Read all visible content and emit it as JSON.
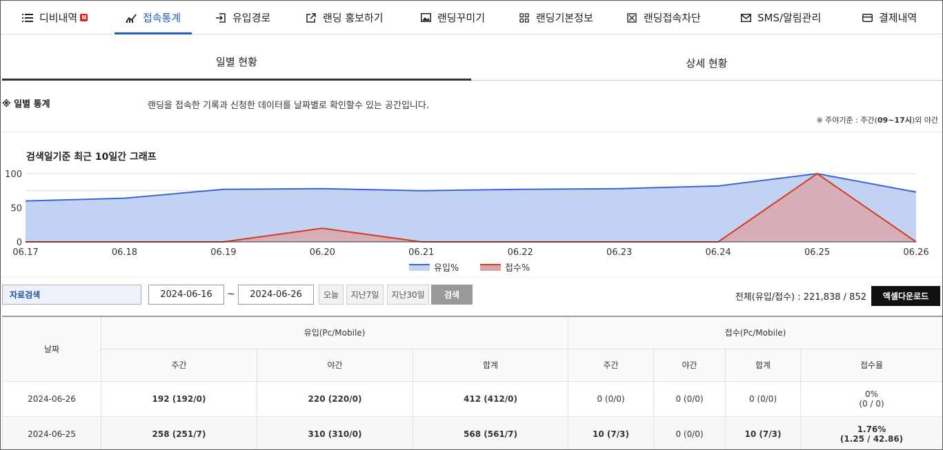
{
  "nav": {
    "items": [
      {
        "label": "디비내역",
        "icon": "list-icon",
        "badge": "N"
      },
      {
        "label": "접속통계",
        "icon": "chart-line-icon",
        "active": true
      },
      {
        "label": "유입경로",
        "icon": "enter-icon"
      },
      {
        "label": "랜딩 홍보하기",
        "icon": "external-link-icon"
      },
      {
        "label": "랜딩꾸미기",
        "icon": "image-icon"
      },
      {
        "label": "랜딩기본정보",
        "icon": "grid-icon"
      },
      {
        "label": "랜딩접속차단",
        "icon": "block-icon"
      },
      {
        "label": "SMS/알림관리",
        "icon": "mail-icon"
      },
      {
        "label": "결제내역",
        "icon": "card-icon"
      }
    ]
  },
  "subtabs": [
    {
      "label": "일별 현황",
      "active": true
    },
    {
      "label": "상세 현황"
    }
  ],
  "info": {
    "title": "※ 일별 통계",
    "description": "랜딩을 접속한 기록과 신청한 데이터를 날짜별로 확인할수 있는 공간입니다.",
    "note_prefix": "※ 주야기준 : 주간(",
    "note_hours": "09~17시",
    "note_suffix": ")외 야간"
  },
  "chart_data": {
    "type": "area",
    "title": "검색일기준 최근 10일간 그래프",
    "categories": [
      "06.17",
      "06.18",
      "06.19",
      "06.20",
      "06.21",
      "06.22",
      "06.23",
      "06.24",
      "06.25",
      "06.26"
    ],
    "series": [
      {
        "name": "유입%",
        "values": [
          60,
          64,
          77,
          78,
          75,
          77,
          78,
          82,
          100,
          73
        ],
        "color": "#3a64d8",
        "fill": "#c2d2f2"
      },
      {
        "name": "접수%",
        "values": [
          0,
          0,
          0,
          20,
          0,
          0,
          0,
          0,
          100,
          0
        ],
        "color": "#d63a1e",
        "fill": "#d9a5a8"
      }
    ],
    "yticks": [
      0,
      50,
      100
    ],
    "ylim": [
      0,
      100
    ],
    "grid": true,
    "legend": "bottom"
  },
  "search": {
    "label": "자료검색",
    "start_date": "2024-06-16",
    "tilde": "~",
    "end_date": "2024-06-26",
    "today": "오늘",
    "last7": "지난7일",
    "last30": "지난30일",
    "search": "검색",
    "totals": "전체(유입/접수) : 221,838 / 852",
    "excel": "엑셀다운로드"
  },
  "table": {
    "date_header": "날짜",
    "inflow_header": "유입(Pc/Mobile)",
    "receipt_header": "접수(Pc/Mobile)",
    "sub_headers": [
      "주간",
      "야간",
      "합계",
      "주간",
      "야간",
      "합계",
      "접수율"
    ],
    "rows": [
      {
        "date": "2024-06-26",
        "in_day": "192 (192/0)",
        "in_night": "220 (220/0)",
        "in_total": "412 (412/0)",
        "rc_day": "0 (0/0)",
        "rc_night": "0 (0/0)",
        "rc_total": "0 (0/0)",
        "rate": "0%",
        "rate_detail": "(0 / 0)",
        "bold_rc": false
      },
      {
        "date": "2024-06-25",
        "in_day": "258 (251/7)",
        "in_night": "310 (310/0)",
        "in_total": "568 (561/7)",
        "rc_day": "10 (7/3)",
        "rc_night": "0 (0/0)",
        "rc_total": "10 (7/3)",
        "rate": "1.76%",
        "rate_detail": "(1.25 / 42.86)",
        "bold_rc": true
      }
    ]
  }
}
